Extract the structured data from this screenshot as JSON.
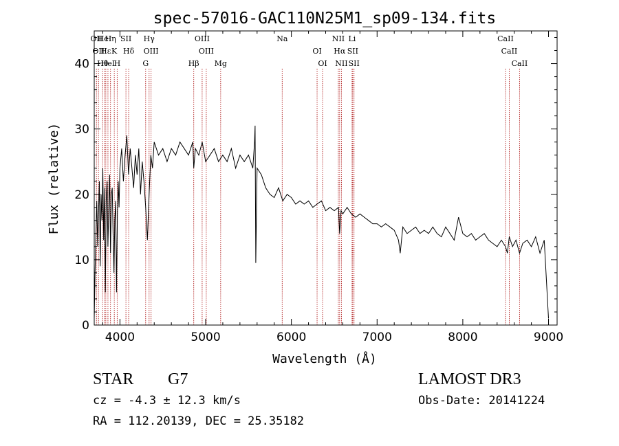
{
  "chart_data": {
    "type": "line",
    "title": "spec-57016-GAC110N25M1_sp09-134.fits",
    "xlabel": "Wavelength (Å)",
    "ylabel": "Flux (relative)",
    "xlim": [
      3700,
      9100
    ],
    "ylim": [
      0,
      45
    ],
    "x_ticks": [
      4000,
      5000,
      6000,
      7000,
      8000,
      9000
    ],
    "x_tick_labels": [
      "4000",
      "5000",
      "6000",
      "7000",
      "8000",
      "9000"
    ],
    "y_ticks": [
      0,
      10,
      20,
      30,
      40
    ],
    "y_tick_labels": [
      "0",
      "10",
      "20",
      "30",
      "40"
    ],
    "series": [
      {
        "name": "spectrum",
        "x": [
          3700,
          3710,
          3720,
          3730,
          3740,
          3750,
          3760,
          3770,
          3780,
          3790,
          3800,
          3810,
          3820,
          3830,
          3840,
          3850,
          3860,
          3870,
          3880,
          3890,
          3900,
          3910,
          3920,
          3930,
          3940,
          3950,
          3960,
          3970,
          3980,
          3990,
          4000,
          4020,
          4040,
          4060,
          4080,
          4100,
          4120,
          4140,
          4160,
          4180,
          4200,
          4220,
          4240,
          4260,
          4280,
          4300,
          4320,
          4340,
          4360,
          4380,
          4400,
          4450,
          4500,
          4550,
          4600,
          4650,
          4700,
          4750,
          4800,
          4850,
          4861,
          4880,
          4920,
          4960,
          5000,
          5050,
          5100,
          5150,
          5200,
          5250,
          5300,
          5350,
          5400,
          5450,
          5500,
          5550,
          5570,
          5577,
          5585,
          5600,
          5650,
          5700,
          5750,
          5800,
          5850,
          5900,
          5950,
          6000,
          6050,
          6100,
          6150,
          6200,
          6250,
          6300,
          6350,
          6400,
          6450,
          6500,
          6550,
          6563,
          6580,
          6600,
          6650,
          6700,
          6750,
          6800,
          6850,
          6900,
          6950,
          7000,
          7050,
          7100,
          7150,
          7200,
          7250,
          7270,
          7300,
          7350,
          7400,
          7450,
          7500,
          7550,
          7600,
          7650,
          7700,
          7750,
          7800,
          7850,
          7900,
          7950,
          8000,
          8050,
          8100,
          8150,
          8200,
          8250,
          8300,
          8350,
          8400,
          8450,
          8498,
          8520,
          8542,
          8580,
          8620,
          8662,
          8700,
          8750,
          8800,
          8850,
          8900,
          8950,
          9000
        ],
        "y": [
          1.0,
          8.0,
          14.0,
          19.0,
          12.0,
          17.0,
          22.0,
          9.0,
          20.0,
          16.0,
          24.0,
          13.0,
          21.0,
          5.0,
          19.0,
          22.0,
          12.0,
          18.0,
          23.0,
          11.0,
          20.0,
          21.0,
          14.0,
          8.0,
          16.0,
          19.0,
          5.0,
          17.0,
          22.0,
          18.0,
          24.0,
          27.0,
          22.0,
          26.0,
          29.0,
          23.0,
          27.0,
          24.0,
          21.0,
          26.0,
          23.0,
          27.0,
          20.0,
          25.0,
          22.0,
          18.0,
          13.0,
          20.0,
          26.0,
          24.0,
          28.0,
          26.0,
          27.0,
          25.0,
          27.0,
          26.0,
          28.0,
          27.0,
          26.0,
          28.0,
          24.0,
          27.0,
          26.0,
          28.0,
          25.0,
          26.0,
          27.0,
          25.0,
          26.0,
          25.0,
          27.0,
          24.0,
          26.0,
          25.0,
          26.0,
          24.0,
          28.0,
          30.5,
          9.5,
          24.0,
          23.0,
          21.0,
          20.0,
          19.5,
          21.0,
          19.0,
          20.0,
          19.5,
          18.5,
          19.0,
          18.5,
          19.0,
          18.0,
          18.5,
          19.0,
          17.5,
          18.0,
          17.5,
          18.0,
          14.0,
          17.5,
          17.0,
          18.0,
          17.0,
          16.5,
          17.0,
          16.5,
          16.0,
          15.5,
          15.5,
          15.0,
          15.5,
          15.0,
          14.5,
          13.0,
          11.0,
          15.0,
          14.0,
          14.5,
          15.0,
          14.0,
          14.5,
          14.0,
          15.0,
          14.0,
          13.5,
          15.0,
          14.0,
          13.0,
          16.5,
          14.0,
          13.5,
          14.0,
          13.0,
          13.5,
          14.0,
          13.0,
          12.5,
          12.0,
          13.0,
          12.0,
          11.0,
          13.5,
          12.0,
          13.0,
          11.0,
          12.5,
          13.0,
          12.0,
          13.5,
          11.0,
          13.0,
          1.0
        ]
      }
    ],
    "line_marks": [
      {
        "wavelength": 3726,
        "label": "OII"
      },
      {
        "wavelength": 3750,
        "label": "OII"
      },
      {
        "wavelength": 3798,
        "label": "Hθ"
      },
      {
        "wavelength": 3820,
        "label": "HeI"
      },
      {
        "wavelength": 3835,
        "label": "Hε"
      },
      {
        "wavelength": 3860,
        "label": "HeI"
      },
      {
        "wavelength": 3890,
        "label": "Hη"
      },
      {
        "wavelength": 3934,
        "label": "K"
      },
      {
        "wavelength": 3968,
        "label": "H"
      },
      {
        "wavelength": 4070,
        "label": "SII"
      },
      {
        "wavelength": 4102,
        "label": "Hδ"
      },
      {
        "wavelength": 4300,
        "label": "G"
      },
      {
        "wavelength": 4340,
        "label": "Hγ"
      },
      {
        "wavelength": 4363,
        "label": "OIII"
      },
      {
        "wavelength": 4861,
        "label": "Hβ"
      },
      {
        "wavelength": 4959,
        "label": "OIII"
      },
      {
        "wavelength": 5007,
        "label": "OIII"
      },
      {
        "wavelength": 5175,
        "label": "Mg"
      },
      {
        "wavelength": 5893,
        "label": "Na"
      },
      {
        "wavelength": 6300,
        "label": "OI"
      },
      {
        "wavelength": 6364,
        "label": "OI"
      },
      {
        "wavelength": 6548,
        "label": "NII"
      },
      {
        "wavelength": 6563,
        "label": "Hα"
      },
      {
        "wavelength": 6584,
        "label": "NII"
      },
      {
        "wavelength": 6708,
        "label": "Li"
      },
      {
        "wavelength": 6716,
        "label": "SII"
      },
      {
        "wavelength": 6731,
        "label": "SII"
      },
      {
        "wavelength": 8498,
        "label": "CaII"
      },
      {
        "wavelength": 8542,
        "label": "CaII"
      },
      {
        "wavelength": 8662,
        "label": "CaII"
      }
    ],
    "grid": false,
    "legend": "none"
  },
  "info": {
    "object_type": "STAR",
    "spectral_class": "G7",
    "survey": "LAMOST DR3",
    "cz": "cz = -4.3 ± 12.3 km/s",
    "obs_date": "Obs-Date: 20141224",
    "radec": "RA = 112.20139, DEC =  25.35182"
  },
  "colors": {
    "spectrum": "#000000",
    "line_marks": "#b22222",
    "axes": "#000000"
  }
}
